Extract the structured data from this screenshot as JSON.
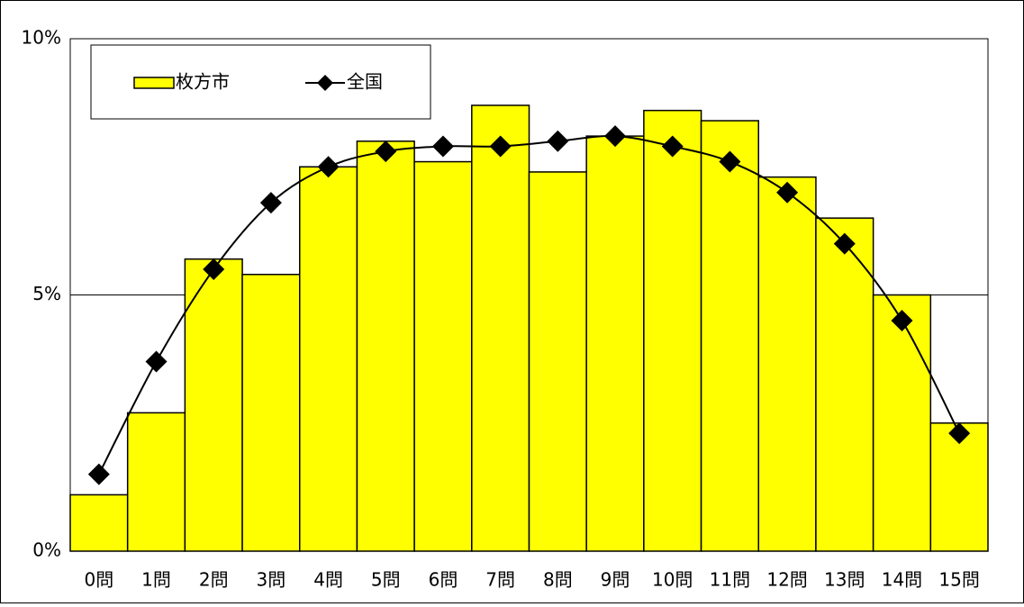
{
  "chart_data": {
    "type": "bar",
    "categories": [
      "0問",
      "1問",
      "2問",
      "3問",
      "4問",
      "5問",
      "6問",
      "7問",
      "8問",
      "9問",
      "10問",
      "11問",
      "12問",
      "13問",
      "14問",
      "15問"
    ],
    "series": [
      {
        "name": "枚方市",
        "type": "bar",
        "color": "#ffff00",
        "values": [
          1.1,
          2.7,
          5.7,
          5.4,
          7.5,
          8.0,
          7.6,
          8.7,
          7.4,
          8.1,
          8.6,
          8.4,
          7.3,
          6.5,
          5.0,
          2.5
        ]
      },
      {
        "name": "全国",
        "type": "line",
        "color": "#000000",
        "values": [
          1.5,
          3.7,
          5.5,
          6.8,
          7.5,
          7.8,
          7.9,
          7.9,
          8.0,
          8.1,
          7.9,
          7.6,
          7.0,
          6.0,
          4.5,
          2.3
        ]
      }
    ],
    "ylim": [
      0,
      10
    ],
    "yticks": [
      {
        "value": 0,
        "label": "0%"
      },
      {
        "value": 5,
        "label": "5%"
      },
      {
        "value": 10,
        "label": "10%"
      }
    ],
    "grid": true,
    "legend": "top-left"
  }
}
